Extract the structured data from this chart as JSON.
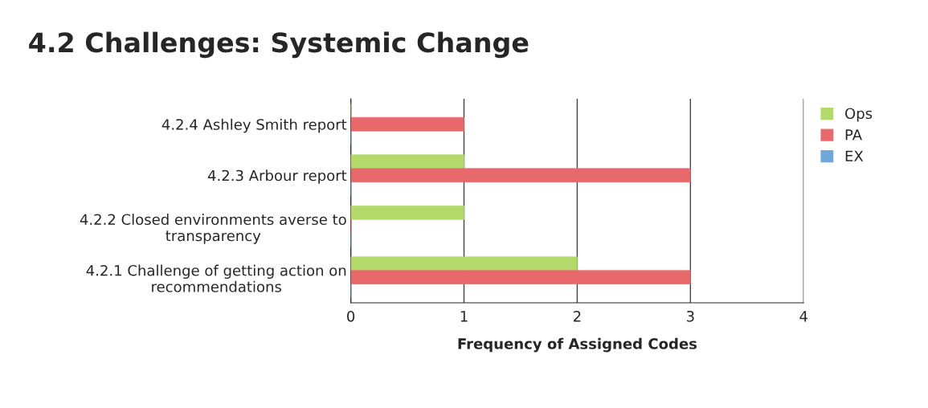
{
  "chart_data": {
    "type": "bar",
    "orientation": "horizontal",
    "title": "4.2 Challenges: Systemic Change",
    "xlabel": "Frequency of Assigned Codes",
    "categories": [
      "4.2.4 Ashley Smith report",
      "4.2.3 Arbour report",
      "4.2.2 Closed environments averse to transparency",
      "4.2.1 Challenge of getting action on recommendations"
    ],
    "series": [
      {
        "name": "Ops",
        "color": "#b3d96b",
        "values": [
          0,
          1,
          1,
          2
        ]
      },
      {
        "name": "PA",
        "color": "#e8696b",
        "values": [
          1,
          3,
          0,
          3
        ]
      },
      {
        "name": "EX",
        "color": "#6fa8dc",
        "values": [
          0,
          0,
          0,
          0
        ]
      }
    ],
    "xlim": [
      0,
      4
    ],
    "xticks": [
      0,
      1,
      2,
      3,
      4
    ],
    "grid": "x",
    "legend": "right"
  }
}
